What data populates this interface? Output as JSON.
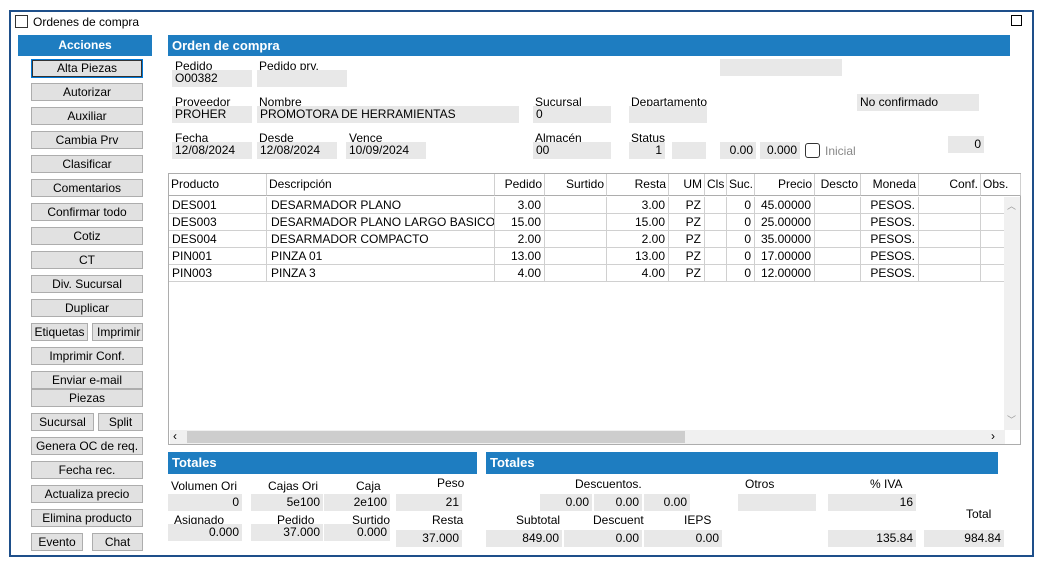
{
  "window": {
    "title": "Ordenes de compra"
  },
  "actions": {
    "header": "Acciones",
    "alta_piezas": "Alta Piezas",
    "autorizar": "Autorizar",
    "auxiliar": "Auxiliar",
    "cambia_prv": "Cambia Prv",
    "clasificar": "Clasificar",
    "comentarios": "Comentarios",
    "confirmar_todo": "Confirmar todo",
    "cotiz": "Cotiz",
    "ct": "CT",
    "div_sucursal": "Div. Sucursal",
    "duplicar": "Duplicar",
    "etiquetas": "Etiquetas",
    "imprimir": "Imprimir",
    "imprimir_conf": "Imprimir Conf.",
    "enviar_email": "Enviar e-mail",
    "piezas": "Piezas",
    "sucursal": "Sucursal",
    "split": "Split",
    "genera_oc": "Genera OC de req.",
    "fecha_rec": "Fecha rec.",
    "actualiza_precio": "Actualiza precio",
    "elimina_producto": "Elimina producto",
    "evento": "Evento",
    "chat": "Chat"
  },
  "order": {
    "header": "Orden de compra",
    "pedido_label": "Pedido",
    "pedido": "O00382",
    "pedido_prv_label": "Pedido prv.",
    "pedido_prv": "",
    "proveedor_label": "Proveedor",
    "proveedor": "PROHER",
    "nombre_label": "Nombre",
    "nombre": "PROMOTORA DE HERRAMIENTAS",
    "sucursal_label": "Sucursal",
    "sucursal": "0",
    "departamento_label": "Departamento",
    "departamento": "",
    "estado": "No confirmado",
    "fecha_label": "Fecha",
    "fecha": "12/08/2024",
    "desde_label": "Desde",
    "desde": "12/08/2024",
    "vence_label": "Vence",
    "vence": "10/09/2024",
    "almacen_label": "Almacén",
    "almacen": "00",
    "status_label": "Status",
    "status": "1",
    "val_a": "0.00",
    "val_b": "0.000",
    "inicial_label": "Inicial",
    "counter": "0"
  },
  "table": {
    "columns": [
      "Producto",
      "Descripción",
      "Pedido",
      "Surtido",
      "Resta",
      "UM",
      "Cls",
      "Suc.",
      "Precio",
      "Descto",
      "Moneda",
      "Conf.",
      "Obs."
    ],
    "rows": [
      {
        "producto": "DES001",
        "descripcion": "DESARMADOR PLANO",
        "pedido": "3.00",
        "surtido": "",
        "resta": "3.00",
        "um": "PZ",
        "cls": "",
        "suc": "0",
        "precio": "45.00000",
        "descto": "",
        "moneda": "PESOS.",
        "conf": "",
        "obs": ""
      },
      {
        "producto": "DES003",
        "descripcion": "DESARMADOR PLANO LARGO BASICO",
        "pedido": "15.00",
        "surtido": "",
        "resta": "15.00",
        "um": "PZ",
        "cls": "",
        "suc": "0",
        "precio": "25.00000",
        "descto": "",
        "moneda": "PESOS.",
        "conf": "",
        "obs": ""
      },
      {
        "producto": "DES004",
        "descripcion": "DESARMADOR COMPACTO",
        "pedido": "2.00",
        "surtido": "",
        "resta": "2.00",
        "um": "PZ",
        "cls": "",
        "suc": "0",
        "precio": "35.00000",
        "descto": "",
        "moneda": "PESOS.",
        "conf": "",
        "obs": ""
      },
      {
        "producto": "PIN001",
        "descripcion": "PINZA 01",
        "pedido": "13.00",
        "surtido": "",
        "resta": "13.00",
        "um": "PZ",
        "cls": "",
        "suc": "0",
        "precio": "17.00000",
        "descto": "",
        "moneda": "PESOS.",
        "conf": "",
        "obs": ""
      },
      {
        "producto": "PIN003",
        "descripcion": "PINZA 3",
        "pedido": "4.00",
        "surtido": "",
        "resta": "4.00",
        "um": "PZ",
        "cls": "",
        "suc": "0",
        "precio": "12.00000",
        "descto": "",
        "moneda": "PESOS.",
        "conf": "",
        "obs": ""
      }
    ]
  },
  "totals_left": {
    "header": "Totales",
    "volumen_ori_label": "Volumen Ori",
    "volumen_ori": "0",
    "cajas_ori_label": "Cajas Ori",
    "cajas_ori": "5e100",
    "caja_label": "Caja",
    "caja": "2e100",
    "peso_label": "Peso",
    "peso": "21",
    "asignado_label": "Asignado",
    "asignado": "0.000",
    "pedido_label": "Pedido",
    "pedido": "37.000",
    "surtido_label": "Surtido",
    "surtido": "0.000",
    "resta_label": "Resta",
    "resta": "37.000"
  },
  "totals_right": {
    "header": "Totales",
    "descuentos_label": "Descuentos.",
    "desc1": "0.00",
    "desc2": "0.00",
    "desc3": "0.00",
    "otros_label": "Otros",
    "otros": "",
    "iva_label": "% IVA",
    "iva": "16",
    "subtotal_label": "Subtotal",
    "subtotal": "849.00",
    "descuent_label": "Descuent",
    "descuent": "0.00",
    "ieps_label": "IEPS",
    "ieps": "0.00",
    "iva_amount": "135.84",
    "total_label": "Total",
    "total": "984.84"
  },
  "colors": {
    "accent": "#1e7dc1",
    "field": "#e8e8e8",
    "button": "#e1e1e1"
  }
}
